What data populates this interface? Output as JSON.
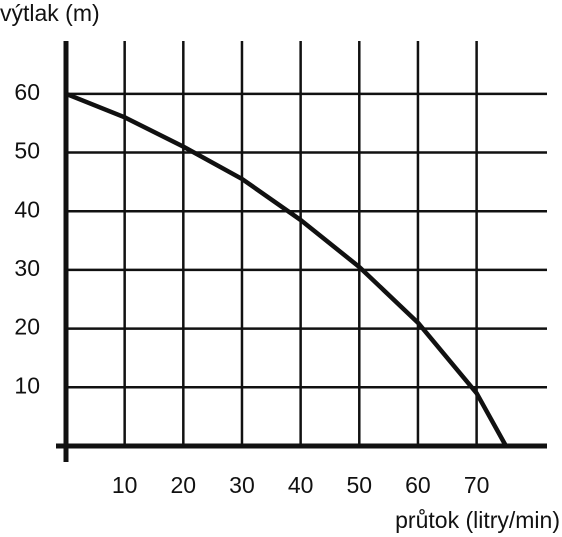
{
  "chart_data": {
    "type": "line",
    "xlabel": "průtok (litry/min)",
    "ylabel": "výtlak (m)",
    "x": [
      0,
      10,
      20,
      30,
      40,
      50,
      60,
      70,
      75
    ],
    "values": [
      60,
      56,
      51,
      45.5,
      38.5,
      30.5,
      21,
      9,
      0
    ],
    "color": "#111111",
    "xlim": [
      0,
      82
    ],
    "ylim": [
      0,
      69
    ],
    "xticks": [
      10,
      20,
      30,
      40,
      50,
      60,
      70
    ],
    "yticks": [
      10,
      20,
      30,
      40,
      50,
      60
    ],
    "grid": true
  }
}
